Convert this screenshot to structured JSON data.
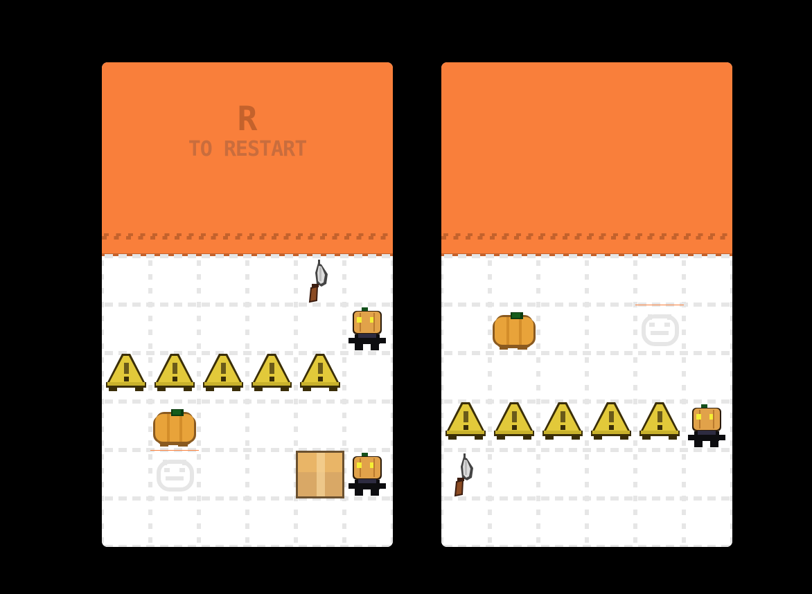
{
  "colors": {
    "orange": "#f97f3b",
    "stripe": "#c4622c",
    "grid": "#e6e6e6",
    "background": "#000000"
  },
  "panels": [
    {
      "restart_key": "R",
      "restart_text": "TO RESTART",
      "grid": {
        "cols": 6,
        "rows": 6
      },
      "entities": [
        {
          "type": "knife",
          "row": 0,
          "col": 4
        },
        {
          "type": "pumpkin-man",
          "row": 1,
          "col": 5
        },
        {
          "type": "cone",
          "row": 2,
          "col": 0
        },
        {
          "type": "cone",
          "row": 2,
          "col": 1
        },
        {
          "type": "cone",
          "row": 2,
          "col": 2
        },
        {
          "type": "cone",
          "row": 2,
          "col": 3
        },
        {
          "type": "cone",
          "row": 2,
          "col": 4
        },
        {
          "type": "pumpkin",
          "row": 3,
          "col": 1
        },
        {
          "type": "ghost",
          "row": 4,
          "col": 1
        },
        {
          "type": "box",
          "row": 4,
          "col": 4
        },
        {
          "type": "pumpkin-man",
          "row": 4,
          "col": 5
        }
      ]
    },
    {
      "restart_key": "",
      "restart_text": "",
      "grid": {
        "cols": 6,
        "rows": 6
      },
      "entities": [
        {
          "type": "pumpkin",
          "row": 1,
          "col": 1
        },
        {
          "type": "ghost",
          "row": 1,
          "col": 4
        },
        {
          "type": "cone",
          "row": 3,
          "col": 0
        },
        {
          "type": "cone",
          "row": 3,
          "col": 1
        },
        {
          "type": "cone",
          "row": 3,
          "col": 2
        },
        {
          "type": "cone",
          "row": 3,
          "col": 3
        },
        {
          "type": "cone",
          "row": 3,
          "col": 4
        },
        {
          "type": "pumpkin-man",
          "row": 3,
          "col": 5
        },
        {
          "type": "knife",
          "row": 4,
          "col": 0
        }
      ]
    }
  ]
}
